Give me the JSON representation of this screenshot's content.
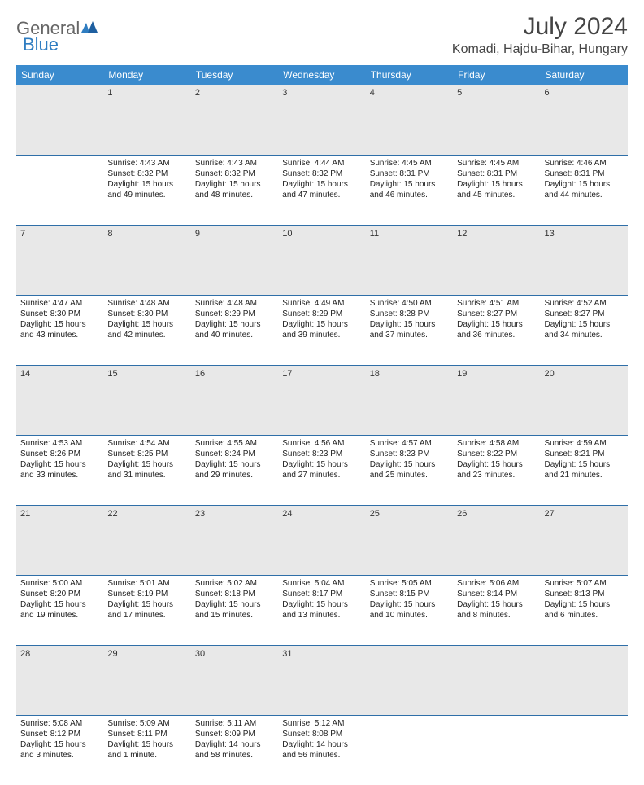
{
  "logo": {
    "part1": "General",
    "part2": "Blue"
  },
  "title": "July 2024",
  "location": "Komadi, Hajdu-Bihar, Hungary",
  "colors": {
    "header_bg": "#3a8bce",
    "header_text": "#ffffff",
    "daynum_bg": "#e8e8e8",
    "row_divider": "#2f6fa8",
    "logo_accent": "#2f7dc1",
    "text": "#222222"
  },
  "days_of_week": [
    "Sunday",
    "Monday",
    "Tuesday",
    "Wednesday",
    "Thursday",
    "Friday",
    "Saturday"
  ],
  "weeks": [
    {
      "nums": [
        "",
        "1",
        "2",
        "3",
        "4",
        "5",
        "6"
      ],
      "cells": [
        null,
        {
          "sr": "Sunrise: 4:43 AM",
          "ss": "Sunset: 8:32 PM",
          "d1": "Daylight: 15 hours",
          "d2": "and 49 minutes."
        },
        {
          "sr": "Sunrise: 4:43 AM",
          "ss": "Sunset: 8:32 PM",
          "d1": "Daylight: 15 hours",
          "d2": "and 48 minutes."
        },
        {
          "sr": "Sunrise: 4:44 AM",
          "ss": "Sunset: 8:32 PM",
          "d1": "Daylight: 15 hours",
          "d2": "and 47 minutes."
        },
        {
          "sr": "Sunrise: 4:45 AM",
          "ss": "Sunset: 8:31 PM",
          "d1": "Daylight: 15 hours",
          "d2": "and 46 minutes."
        },
        {
          "sr": "Sunrise: 4:45 AM",
          "ss": "Sunset: 8:31 PM",
          "d1": "Daylight: 15 hours",
          "d2": "and 45 minutes."
        },
        {
          "sr": "Sunrise: 4:46 AM",
          "ss": "Sunset: 8:31 PM",
          "d1": "Daylight: 15 hours",
          "d2": "and 44 minutes."
        }
      ]
    },
    {
      "nums": [
        "7",
        "8",
        "9",
        "10",
        "11",
        "12",
        "13"
      ],
      "cells": [
        {
          "sr": "Sunrise: 4:47 AM",
          "ss": "Sunset: 8:30 PM",
          "d1": "Daylight: 15 hours",
          "d2": "and 43 minutes."
        },
        {
          "sr": "Sunrise: 4:48 AM",
          "ss": "Sunset: 8:30 PM",
          "d1": "Daylight: 15 hours",
          "d2": "and 42 minutes."
        },
        {
          "sr": "Sunrise: 4:48 AM",
          "ss": "Sunset: 8:29 PM",
          "d1": "Daylight: 15 hours",
          "d2": "and 40 minutes."
        },
        {
          "sr": "Sunrise: 4:49 AM",
          "ss": "Sunset: 8:29 PM",
          "d1": "Daylight: 15 hours",
          "d2": "and 39 minutes."
        },
        {
          "sr": "Sunrise: 4:50 AM",
          "ss": "Sunset: 8:28 PM",
          "d1": "Daylight: 15 hours",
          "d2": "and 37 minutes."
        },
        {
          "sr": "Sunrise: 4:51 AM",
          "ss": "Sunset: 8:27 PM",
          "d1": "Daylight: 15 hours",
          "d2": "and 36 minutes."
        },
        {
          "sr": "Sunrise: 4:52 AM",
          "ss": "Sunset: 8:27 PM",
          "d1": "Daylight: 15 hours",
          "d2": "and 34 minutes."
        }
      ]
    },
    {
      "nums": [
        "14",
        "15",
        "16",
        "17",
        "18",
        "19",
        "20"
      ],
      "cells": [
        {
          "sr": "Sunrise: 4:53 AM",
          "ss": "Sunset: 8:26 PM",
          "d1": "Daylight: 15 hours",
          "d2": "and 33 minutes."
        },
        {
          "sr": "Sunrise: 4:54 AM",
          "ss": "Sunset: 8:25 PM",
          "d1": "Daylight: 15 hours",
          "d2": "and 31 minutes."
        },
        {
          "sr": "Sunrise: 4:55 AM",
          "ss": "Sunset: 8:24 PM",
          "d1": "Daylight: 15 hours",
          "d2": "and 29 minutes."
        },
        {
          "sr": "Sunrise: 4:56 AM",
          "ss": "Sunset: 8:23 PM",
          "d1": "Daylight: 15 hours",
          "d2": "and 27 minutes."
        },
        {
          "sr": "Sunrise: 4:57 AM",
          "ss": "Sunset: 8:23 PM",
          "d1": "Daylight: 15 hours",
          "d2": "and 25 minutes."
        },
        {
          "sr": "Sunrise: 4:58 AM",
          "ss": "Sunset: 8:22 PM",
          "d1": "Daylight: 15 hours",
          "d2": "and 23 minutes."
        },
        {
          "sr": "Sunrise: 4:59 AM",
          "ss": "Sunset: 8:21 PM",
          "d1": "Daylight: 15 hours",
          "d2": "and 21 minutes."
        }
      ]
    },
    {
      "nums": [
        "21",
        "22",
        "23",
        "24",
        "25",
        "26",
        "27"
      ],
      "cells": [
        {
          "sr": "Sunrise: 5:00 AM",
          "ss": "Sunset: 8:20 PM",
          "d1": "Daylight: 15 hours",
          "d2": "and 19 minutes."
        },
        {
          "sr": "Sunrise: 5:01 AM",
          "ss": "Sunset: 8:19 PM",
          "d1": "Daylight: 15 hours",
          "d2": "and 17 minutes."
        },
        {
          "sr": "Sunrise: 5:02 AM",
          "ss": "Sunset: 8:18 PM",
          "d1": "Daylight: 15 hours",
          "d2": "and 15 minutes."
        },
        {
          "sr": "Sunrise: 5:04 AM",
          "ss": "Sunset: 8:17 PM",
          "d1": "Daylight: 15 hours",
          "d2": "and 13 minutes."
        },
        {
          "sr": "Sunrise: 5:05 AM",
          "ss": "Sunset: 8:15 PM",
          "d1": "Daylight: 15 hours",
          "d2": "and 10 minutes."
        },
        {
          "sr": "Sunrise: 5:06 AM",
          "ss": "Sunset: 8:14 PM",
          "d1": "Daylight: 15 hours",
          "d2": "and 8 minutes."
        },
        {
          "sr": "Sunrise: 5:07 AM",
          "ss": "Sunset: 8:13 PM",
          "d1": "Daylight: 15 hours",
          "d2": "and 6 minutes."
        }
      ]
    },
    {
      "nums": [
        "28",
        "29",
        "30",
        "31",
        "",
        "",
        ""
      ],
      "cells": [
        {
          "sr": "Sunrise: 5:08 AM",
          "ss": "Sunset: 8:12 PM",
          "d1": "Daylight: 15 hours",
          "d2": "and 3 minutes."
        },
        {
          "sr": "Sunrise: 5:09 AM",
          "ss": "Sunset: 8:11 PM",
          "d1": "Daylight: 15 hours",
          "d2": "and 1 minute."
        },
        {
          "sr": "Sunrise: 5:11 AM",
          "ss": "Sunset: 8:09 PM",
          "d1": "Daylight: 14 hours",
          "d2": "and 58 minutes."
        },
        {
          "sr": "Sunrise: 5:12 AM",
          "ss": "Sunset: 8:08 PM",
          "d1": "Daylight: 14 hours",
          "d2": "and 56 minutes."
        },
        null,
        null,
        null
      ]
    }
  ]
}
